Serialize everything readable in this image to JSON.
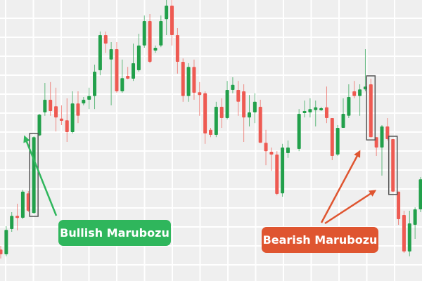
{
  "chart_data": {
    "type": "candlestick",
    "title": "",
    "xlabel": "",
    "ylabel": "",
    "ylim": [
      0,
      100
    ],
    "grid": true,
    "colors": {
      "up": "#22a04b",
      "down": "#ee5a52",
      "background": "#efefef",
      "grid": "#ffffff",
      "highlight_box": "#555555"
    },
    "candles_ohlc": [
      [
        11.2,
        12.5,
        8,
        9.5
      ],
      [
        9.5,
        19.5,
        8.8,
        18.2
      ],
      [
        18.5,
        24.5,
        17.5,
        23.2
      ],
      [
        23.2,
        27.5,
        18,
        22.5
      ],
      [
        22.5,
        32.5,
        22,
        31.8
      ],
      [
        31.2,
        32,
        24.5,
        25
      ],
      [
        24.2,
        51.5,
        24,
        51.2
      ],
      [
        51.8,
        59.5,
        51.5,
        59.2
      ],
      [
        60,
        70.5,
        58.8,
        64.5
      ],
      [
        64.5,
        70.8,
        58.8,
        60.5
      ],
      [
        62.2,
        68.8,
        53.2,
        58.2
      ],
      [
        57.8,
        62.5,
        55.5,
        57
      ],
      [
        57.2,
        65,
        49.5,
        53
      ],
      [
        53,
        67.5,
        52.5,
        63.2
      ],
      [
        63.2,
        67.5,
        56.2,
        58.8
      ],
      [
        63.2,
        65.5,
        62.5,
        64.5
      ],
      [
        64.5,
        68.8,
        61.2,
        65.8
      ],
      [
        65.8,
        77,
        61.2,
        74.5
      ],
      [
        75,
        88.8,
        73.2,
        87.5
      ],
      [
        87.5,
        88.8,
        81.2,
        84.5
      ],
      [
        78.8,
        85,
        62.5,
        82.5
      ],
      [
        82.5,
        85,
        67,
        67.5
      ],
      [
        67.5,
        78.8,
        67,
        72.2
      ],
      [
        73,
        76.2,
        71.8,
        72
      ],
      [
        72,
        84.5,
        71.2,
        77.5
      ],
      [
        75,
        88,
        74.5,
        83.8
      ],
      [
        83.8,
        94.5,
        83,
        92.5
      ],
      [
        92.5,
        95,
        77.5,
        78
      ],
      [
        82,
        83.8,
        81.2,
        83
      ],
      [
        83.8,
        94.5,
        83.2,
        92.5
      ],
      [
        93.2,
        100,
        87.5,
        98
      ],
      [
        98,
        100,
        83.8,
        87.5
      ],
      [
        87.5,
        90,
        73.8,
        78
      ],
      [
        78,
        79.2,
        63.8,
        65.8
      ],
      [
        65.8,
        77.5,
        63.8,
        76.2
      ],
      [
        76.2,
        78.8,
        64.5,
        67
      ],
      [
        67.2,
        70.8,
        58.8,
        66.2
      ],
      [
        66.8,
        67.5,
        48.8,
        52.5
      ],
      [
        53.8,
        54.5,
        51.2,
        52
      ],
      [
        52,
        63.8,
        51.2,
        62
      ],
      [
        62,
        65,
        54.5,
        58
      ],
      [
        58,
        71.2,
        57.5,
        68
      ],
      [
        68,
        72.5,
        66.8,
        69.8
      ],
      [
        68,
        71.2,
        58.8,
        63.8
      ],
      [
        67.5,
        70,
        49.5,
        58.2
      ],
      [
        58.2,
        66.2,
        55,
        60
      ],
      [
        60,
        66.8,
        56.2,
        63.8
      ],
      [
        62,
        64.5,
        49.2,
        49.2
      ],
      [
        49.2,
        53.8,
        41.2,
        46.2
      ],
      [
        46,
        47.5,
        39.2,
        45
      ],
      [
        45,
        46.2,
        30.5,
        31
      ],
      [
        31.2,
        48.8,
        30,
        47.5
      ],
      [
        45.5,
        50,
        43.8,
        47.5
      ],
      null,
      [
        47,
        61.2,
        46.2,
        59.5
      ],
      [
        60,
        64.2,
        58.2,
        60.5
      ],
      [
        60,
        65,
        58.2,
        61.2
      ],
      [
        60.8,
        64.2,
        55,
        61.8
      ],
      [
        61,
        62,
        60.5,
        61.5
      ],
      [
        61.8,
        69.2,
        56.2,
        58
      ],
      [
        58,
        58,
        43,
        44.5
      ],
      [
        45,
        55.5,
        44.5,
        54.5
      ],
      [
        54.5,
        65,
        54.5,
        59.5
      ],
      [
        58.8,
        70,
        58,
        65.5
      ],
      [
        67.5,
        71.2,
        65,
        65.8
      ],
      [
        65.8,
        70,
        58.8,
        68.2
      ],
      [
        68.2,
        82.5,
        67.5,
        69.2
      ],
      [
        70,
        72,
        51.2,
        51.2
      ],
      [
        51.2,
        51.2,
        44.5,
        47.5
      ],
      [
        47.5,
        55.5,
        37.5,
        55
      ],
      [
        55,
        58,
        50,
        50.5
      ],
      [
        50.5,
        50.5,
        31.8,
        31.8
      ],
      [
        31.8,
        31.8,
        20,
        22
      ],
      [
        23.5,
        25,
        10,
        10.5
      ],
      [
        10.5,
        25,
        8.8,
        20.5
      ],
      [
        20,
        26.2,
        15,
        25.5
      ],
      [
        25.5,
        37,
        24.5,
        36.2
      ]
    ],
    "annotations": [
      {
        "text": "Bullish Marubozu",
        "color": "#2fb65c",
        "candle_index": [
          6
        ]
      },
      {
        "text": "Bearish Marubozu",
        "color": "#df5530",
        "candle_index": [
          67,
          71
        ]
      }
    ]
  }
}
